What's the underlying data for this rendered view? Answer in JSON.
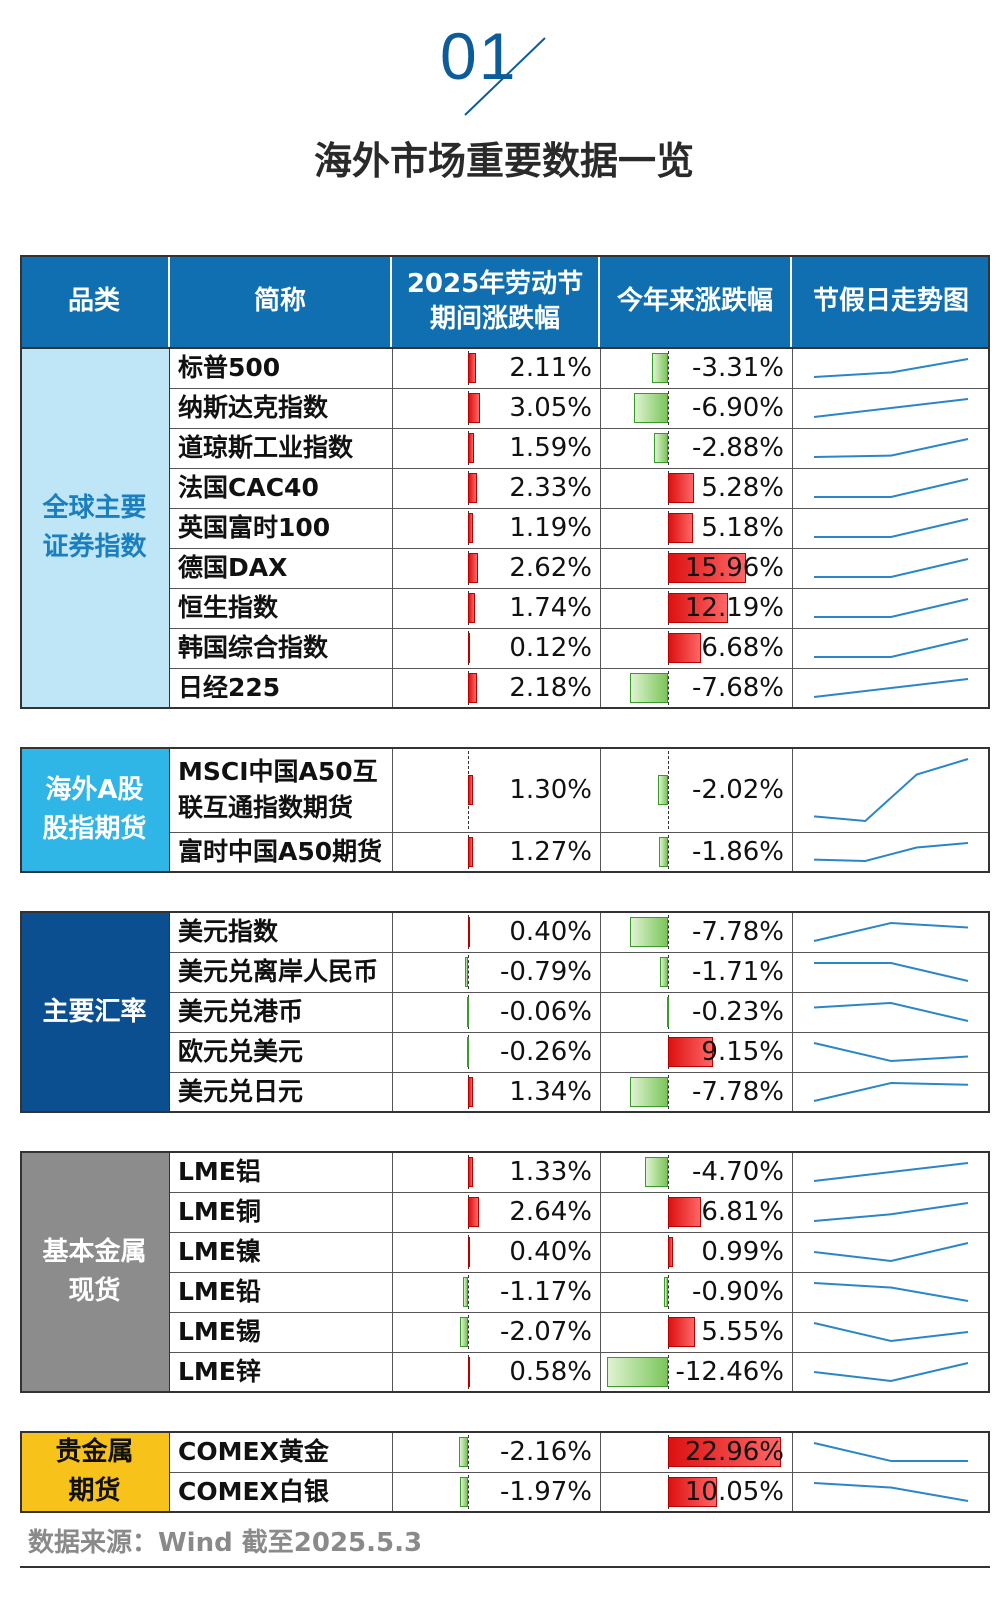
{
  "header": {
    "number": "01",
    "title": "海外市场重要数据一览"
  },
  "table": {
    "columns": [
      "品类",
      "简称",
      "2025年劳动节\n期间涨跌幅",
      "今年来涨跌幅",
      "节假日走势图"
    ],
    "groups": [
      {
        "category": "全球主要\n证券指数",
        "bg": "#bfe6f7",
        "fg": "#1b7fbf",
        "rows": [
          {
            "name": "标普500",
            "holiday": 2.11,
            "holiday_text": "2.11%",
            "ytd": -3.31,
            "ytd_text": "-3.31%",
            "trend": [
              1,
              2,
              5
            ]
          },
          {
            "name": "纳斯达克指数",
            "holiday": 3.05,
            "holiday_text": "3.05%",
            "ytd": -6.9,
            "ytd_text": "-6.90%",
            "trend": [
              1,
              3,
              5
            ]
          },
          {
            "name": "道琼斯工业指数",
            "holiday": 1.59,
            "holiday_text": "1.59%",
            "ytd": -2.88,
            "ytd_text": "-2.88%",
            "trend": [
              1,
              1.3,
              5
            ]
          },
          {
            "name": "法国CAC40",
            "holiday": 2.33,
            "holiday_text": "2.33%",
            "ytd": 5.28,
            "ytd_text": "5.28%",
            "trend": [
              1,
              1,
              5
            ]
          },
          {
            "name": "英国富时100",
            "holiday": 1.19,
            "holiday_text": "1.19%",
            "ytd": 5.18,
            "ytd_text": "5.18%",
            "trend": [
              1,
              1,
              5
            ]
          },
          {
            "name": "德国DAX",
            "holiday": 2.62,
            "holiday_text": "2.62%",
            "ytd": 15.96,
            "ytd_text": "15.96%",
            "trend": [
              1,
              1,
              5
            ]
          },
          {
            "name": "恒生指数",
            "holiday": 1.74,
            "holiday_text": "1.74%",
            "ytd": 12.19,
            "ytd_text": "12.19%",
            "trend": [
              1,
              1,
              5
            ]
          },
          {
            "name": "韩国综合指数",
            "holiday": 0.12,
            "holiday_text": "0.12%",
            "ytd": 6.68,
            "ytd_text": "6.68%",
            "trend": [
              1,
              1,
              5
            ]
          },
          {
            "name": "日经225",
            "holiday": 2.18,
            "holiday_text": "2.18%",
            "ytd": -7.68,
            "ytd_text": "-7.68%",
            "trend": [
              1,
              3,
              5
            ]
          }
        ]
      },
      {
        "category": "海外A股\n股指期货",
        "bg": "#2fb6e6",
        "fg": "#ffffff",
        "rows": [
          {
            "name": "MSCI中国A50互\n联互通指数期货",
            "holiday": 1.3,
            "holiday_text": "1.30%",
            "ytd": -2.02,
            "ytd_text": "-2.02%",
            "trend": [
              1.3,
              1,
              4,
              5
            ]
          },
          {
            "name": "富时中国A50期货",
            "holiday": 1.27,
            "holiday_text": "1.27%",
            "ytd": -1.86,
            "ytd_text": "-1.86%",
            "trend": [
              1.3,
              1,
              4,
              5
            ]
          }
        ]
      },
      {
        "category": "主要汇率",
        "bg": "#0b4f91",
        "fg": "#ffffff",
        "rows": [
          {
            "name": "美元指数",
            "holiday": 0.4,
            "holiday_text": "0.40%",
            "ytd": -7.78,
            "ytd_text": "-7.78%",
            "trend": [
              1,
              5,
              4
            ]
          },
          {
            "name": "美元兑离岸人民币",
            "holiday": -0.79,
            "holiday_text": "-0.79%",
            "ytd": -1.71,
            "ytd_text": "-1.71%",
            "trend": [
              5,
              5,
              1
            ]
          },
          {
            "name": "美元兑港币",
            "holiday": -0.06,
            "holiday_text": "-0.06%",
            "ytd": -0.23,
            "ytd_text": "-0.23%",
            "trend": [
              4,
              5,
              1
            ]
          },
          {
            "name": "欧元兑美元",
            "holiday": -0.26,
            "holiday_text": "-0.26%",
            "ytd": 9.15,
            "ytd_text": "9.15%",
            "trend": [
              5,
              1,
              2
            ]
          },
          {
            "name": "美元兑日元",
            "holiday": 1.34,
            "holiday_text": "1.34%",
            "ytd": -7.78,
            "ytd_text": "-7.78%",
            "trend": [
              1,
              5,
              4.6
            ]
          }
        ]
      },
      {
        "category": "基本金属\n现货",
        "bg": "#8c8c8c",
        "fg": "#ffffff",
        "rows": [
          {
            "name": "LME铝",
            "holiday": 1.33,
            "holiday_text": "1.33%",
            "ytd": -4.7,
            "ytd_text": "-4.70%",
            "trend": [
              1,
              3,
              5
            ]
          },
          {
            "name": "LME铜",
            "holiday": 2.64,
            "holiday_text": "2.64%",
            "ytd": 6.81,
            "ytd_text": "6.81%",
            "trend": [
              1,
              2.5,
              5
            ]
          },
          {
            "name": "LME镍",
            "holiday": 0.4,
            "holiday_text": "0.40%",
            "ytd": 0.99,
            "ytd_text": "0.99%",
            "trend": [
              3,
              1,
              5
            ]
          },
          {
            "name": "LME铅",
            "holiday": -1.17,
            "holiday_text": "-1.17%",
            "ytd": -0.9,
            "ytd_text": "-0.90%",
            "trend": [
              5,
              4,
              1
            ]
          },
          {
            "name": "LME锡",
            "holiday": -2.07,
            "holiday_text": "-2.07%",
            "ytd": 5.55,
            "ytd_text": "5.55%",
            "trend": [
              5,
              1,
              3
            ]
          },
          {
            "name": "LME锌",
            "holiday": 0.58,
            "holiday_text": "0.58%",
            "ytd": -12.46,
            "ytd_text": "-12.46%",
            "trend": [
              3,
              1,
              5
            ]
          }
        ]
      },
      {
        "category": "贵金属\n期货",
        "bg": "#f7c21a",
        "fg": "#111111",
        "rows": [
          {
            "name": "COMEX黄金",
            "holiday": -2.16,
            "holiday_text": "-2.16%",
            "ytd": 22.96,
            "ytd_text": "22.96%",
            "trend": [
              5,
              1,
              1
            ]
          },
          {
            "name": "COMEX白银",
            "holiday": -1.97,
            "holiday_text": "-1.97%",
            "ytd": 10.05,
            "ytd_text": "10.05%",
            "trend": [
              5,
              4,
              1
            ]
          }
        ]
      }
    ]
  },
  "source": "数据来源：Wind 截至2025.5.3",
  "colors": {
    "header_bg": "#0f6fb1",
    "spark": "#2a86c6",
    "pos_bar": "#e52424",
    "neg_bar": "#7bc65a"
  }
}
